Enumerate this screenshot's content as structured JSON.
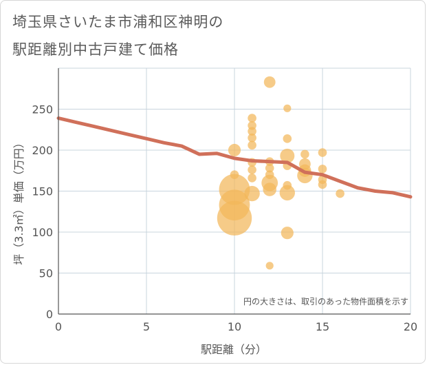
{
  "page": {
    "title_line1": "埼玉県さいたま市浦和区神明の",
    "title_line2": "駅距離別中古戸建て価格"
  },
  "chart_data": {
    "type": "scatter",
    "xlabel": "駅距離（分）",
    "ylabel": "坪（3.3㎡）単価（万円）",
    "xlim": [
      0,
      20
    ],
    "ylim": [
      0,
      300
    ],
    "xticks": [
      0,
      5,
      10,
      15,
      20
    ],
    "yticks": [
      0,
      50,
      100,
      150,
      200,
      250
    ],
    "note": "円の大きさは、取引のあった物件面積を示す",
    "colors": {
      "bubble": "#f2b75a",
      "trend": "#d0705a",
      "grid": "#c8d4de"
    },
    "trend_line": {
      "x": [
        0,
        1,
        2,
        3,
        4,
        5,
        6,
        7,
        8,
        9,
        10,
        11,
        12,
        13,
        14,
        15,
        16,
        17,
        18,
        19,
        20
      ],
      "y": [
        239,
        234,
        229,
        224,
        219,
        214,
        209,
        205,
        195,
        196,
        190,
        187,
        186,
        185,
        173,
        170,
        162,
        154,
        150,
        148,
        143
      ]
    },
    "bubbles": [
      {
        "x": 10,
        "y": 117,
        "size": 3.6
      },
      {
        "x": 10,
        "y": 133,
        "size": 3.2
      },
      {
        "x": 10,
        "y": 152,
        "size": 3.2
      },
      {
        "x": 10,
        "y": 200,
        "size": 1.3
      },
      {
        "x": 10,
        "y": 170,
        "size": 0.9
      },
      {
        "x": 11,
        "y": 239,
        "size": 0.9
      },
      {
        "x": 11,
        "y": 230,
        "size": 0.9
      },
      {
        "x": 11,
        "y": 223,
        "size": 0.9
      },
      {
        "x": 11,
        "y": 215,
        "size": 0.9
      },
      {
        "x": 11,
        "y": 206,
        "size": 0.9
      },
      {
        "x": 11,
        "y": 185,
        "size": 0.9
      },
      {
        "x": 11,
        "y": 176,
        "size": 0.9
      },
      {
        "x": 11,
        "y": 166,
        "size": 0.9
      },
      {
        "x": 11,
        "y": 147,
        "size": 1.6
      },
      {
        "x": 12,
        "y": 283,
        "size": 1.2
      },
      {
        "x": 12,
        "y": 186,
        "size": 0.9
      },
      {
        "x": 12,
        "y": 178,
        "size": 0.9
      },
      {
        "x": 12,
        "y": 170,
        "size": 0.9
      },
      {
        "x": 12,
        "y": 160,
        "size": 1.7
      },
      {
        "x": 12,
        "y": 152,
        "size": 1.4
      },
      {
        "x": 12,
        "y": 59,
        "size": 0.8
      },
      {
        "x": 13,
        "y": 251,
        "size": 0.8
      },
      {
        "x": 13,
        "y": 214,
        "size": 0.9
      },
      {
        "x": 13,
        "y": 193,
        "size": 1.5
      },
      {
        "x": 13,
        "y": 181,
        "size": 0.9
      },
      {
        "x": 13,
        "y": 157,
        "size": 0.9
      },
      {
        "x": 13,
        "y": 148,
        "size": 1.6
      },
      {
        "x": 13,
        "y": 99,
        "size": 1.3
      },
      {
        "x": 14,
        "y": 195,
        "size": 0.9
      },
      {
        "x": 14,
        "y": 183,
        "size": 1.2
      },
      {
        "x": 14,
        "y": 175,
        "size": 1.3
      },
      {
        "x": 14,
        "y": 169,
        "size": 1.6
      },
      {
        "x": 15,
        "y": 197,
        "size": 0.9
      },
      {
        "x": 15,
        "y": 177,
        "size": 0.9
      },
      {
        "x": 15,
        "y": 164,
        "size": 0.9
      },
      {
        "x": 15,
        "y": 158,
        "size": 0.9
      },
      {
        "x": 16,
        "y": 147,
        "size": 0.9
      }
    ]
  }
}
